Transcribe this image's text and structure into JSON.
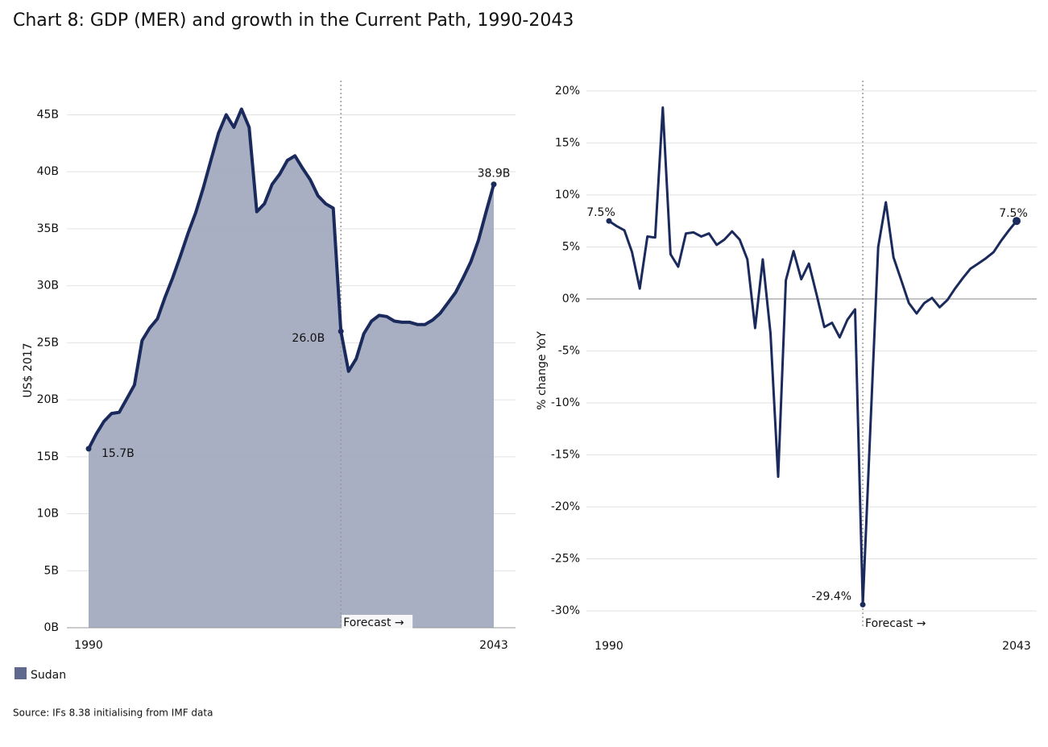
{
  "title": "Chart 8: GDP (MER) and growth in the Current Path, 1990-2043",
  "source": "Source: IFs 8.38 initialising from IMF data",
  "chart_data": [
    {
      "type": "area",
      "ylabel": "US$ 2017",
      "x": [
        1990,
        1991,
        1992,
        1993,
        1994,
        1995,
        1996,
        1997,
        1998,
        1999,
        2000,
        2001,
        2002,
        2003,
        2004,
        2005,
        2006,
        2007,
        2008,
        2009,
        2010,
        2011,
        2012,
        2013,
        2014,
        2015,
        2016,
        2017,
        2018,
        2019,
        2020,
        2021,
        2022,
        2023,
        2024,
        2025,
        2026,
        2027,
        2028,
        2029,
        2030,
        2031,
        2032,
        2033,
        2034,
        2035,
        2036,
        2037,
        2038,
        2039,
        2040,
        2041,
        2042,
        2043
      ],
      "series": [
        {
          "name": "Sudan",
          "color": "#1b2a5c",
          "fill": "#a3abc0",
          "values": [
            15.7,
            17.0,
            18.1,
            18.8,
            18.9,
            20.1,
            21.3,
            25.2,
            26.3,
            27.1,
            29.0,
            30.7,
            32.6,
            34.6,
            36.4,
            38.6,
            41.0,
            43.4,
            45.0,
            43.9,
            45.5,
            43.9,
            36.5,
            37.2,
            38.9,
            39.8,
            41.0,
            41.4,
            40.3,
            39.3,
            37.9,
            37.2,
            36.8,
            26.0,
            22.5,
            23.6,
            25.8,
            26.9,
            27.4,
            27.3,
            26.9,
            26.8,
            26.8,
            26.6,
            26.6,
            27.0,
            27.6,
            28.5,
            29.4,
            30.7,
            32.1,
            34.0,
            36.5,
            38.9
          ],
          "value_labels": [
            "15.7B",
            null,
            null,
            null,
            null,
            null,
            null,
            null,
            null,
            null,
            null,
            null,
            null,
            null,
            null,
            null,
            null,
            null,
            null,
            null,
            null,
            null,
            null,
            null,
            null,
            null,
            null,
            null,
            null,
            null,
            null,
            null,
            null,
            "26.0B",
            null,
            null,
            null,
            null,
            null,
            null,
            null,
            null,
            null,
            null,
            null,
            null,
            null,
            null,
            null,
            null,
            null,
            null,
            null,
            "38.9B"
          ]
        }
      ],
      "xlim": [
        1990,
        2043
      ],
      "xticks": [
        1990,
        2043
      ],
      "ylim": [
        0,
        48
      ],
      "yticks": [
        {
          "value": 0,
          "label": "0B"
        },
        {
          "value": 5,
          "label": "5B"
        },
        {
          "value": 10,
          "label": "10B"
        },
        {
          "value": 15,
          "label": "15B"
        },
        {
          "value": 20,
          "label": "20B"
        },
        {
          "value": 25,
          "label": "25B"
        },
        {
          "value": 30,
          "label": "30B"
        },
        {
          "value": 35,
          "label": "35B"
        },
        {
          "value": 40,
          "label": "40B"
        },
        {
          "value": 45,
          "label": "45B"
        }
      ],
      "grid": true,
      "forecast": {
        "x": 2023,
        "label": "Forecast →"
      }
    },
    {
      "type": "line",
      "ylabel": "% change YoY",
      "x": [
        1990,
        1991,
        1992,
        1993,
        1994,
        1995,
        1996,
        1997,
        1998,
        1999,
        2000,
        2001,
        2002,
        2003,
        2004,
        2005,
        2006,
        2007,
        2008,
        2009,
        2010,
        2011,
        2012,
        2013,
        2014,
        2015,
        2016,
        2017,
        2018,
        2019,
        2020,
        2021,
        2022,
        2023,
        2024,
        2025,
        2026,
        2027,
        2028,
        2029,
        2030,
        2031,
        2032,
        2033,
        2034,
        2035,
        2036,
        2037,
        2038,
        2039,
        2040,
        2041,
        2042,
        2043
      ],
      "color": "#1b2a5c",
      "values": [
        7.5,
        7.0,
        6.6,
        4.5,
        1.0,
        6.0,
        5.9,
        18.4,
        4.3,
        3.1,
        6.3,
        6.4,
        6.0,
        6.3,
        5.2,
        5.7,
        6.5,
        5.7,
        3.8,
        -2.8,
        3.8,
        -3.3,
        -17.1,
        1.8,
        4.6,
        1.9,
        3.4,
        0.4,
        -2.7,
        -2.3,
        -3.7,
        -2.0,
        -1.0,
        -29.4,
        -12.2,
        5.0,
        9.3,
        4.0,
        1.8,
        -0.4,
        -1.4,
        -0.4,
        0.1,
        -0.8,
        -0.1,
        1.0,
        2.0,
        2.9,
        3.4,
        3.9,
        4.5,
        5.6,
        6.6,
        7.5
      ],
      "value_labels": [
        "7.5%",
        null,
        null,
        null,
        null,
        null,
        null,
        null,
        null,
        null,
        null,
        null,
        null,
        null,
        null,
        null,
        null,
        null,
        null,
        null,
        null,
        null,
        null,
        null,
        null,
        null,
        null,
        null,
        null,
        null,
        null,
        null,
        null,
        "-29.4%",
        null,
        null,
        null,
        null,
        null,
        null,
        null,
        null,
        null,
        null,
        null,
        null,
        null,
        null,
        null,
        null,
        null,
        null,
        null,
        "7.5%"
      ],
      "xlim": [
        1990,
        2043
      ],
      "xticks": [
        1990,
        2043
      ],
      "ylim": [
        -31.7,
        21
      ],
      "yticks": [
        {
          "value": -30,
          "label": "-30%"
        },
        {
          "value": -25,
          "label": "-25%"
        },
        {
          "value": -20,
          "label": "-20%"
        },
        {
          "value": -15,
          "label": "-15%"
        },
        {
          "value": -10,
          "label": "-10%"
        },
        {
          "value": -5,
          "label": "-5%"
        },
        {
          "value": 0,
          "label": "0%"
        },
        {
          "value": 5,
          "label": "5%"
        },
        {
          "value": 10,
          "label": "10%"
        },
        {
          "value": 15,
          "label": "15%"
        },
        {
          "value": 20,
          "label": "20%"
        }
      ],
      "grid": true,
      "forecast": {
        "x": 2023,
        "label": "Forecast →"
      }
    }
  ]
}
